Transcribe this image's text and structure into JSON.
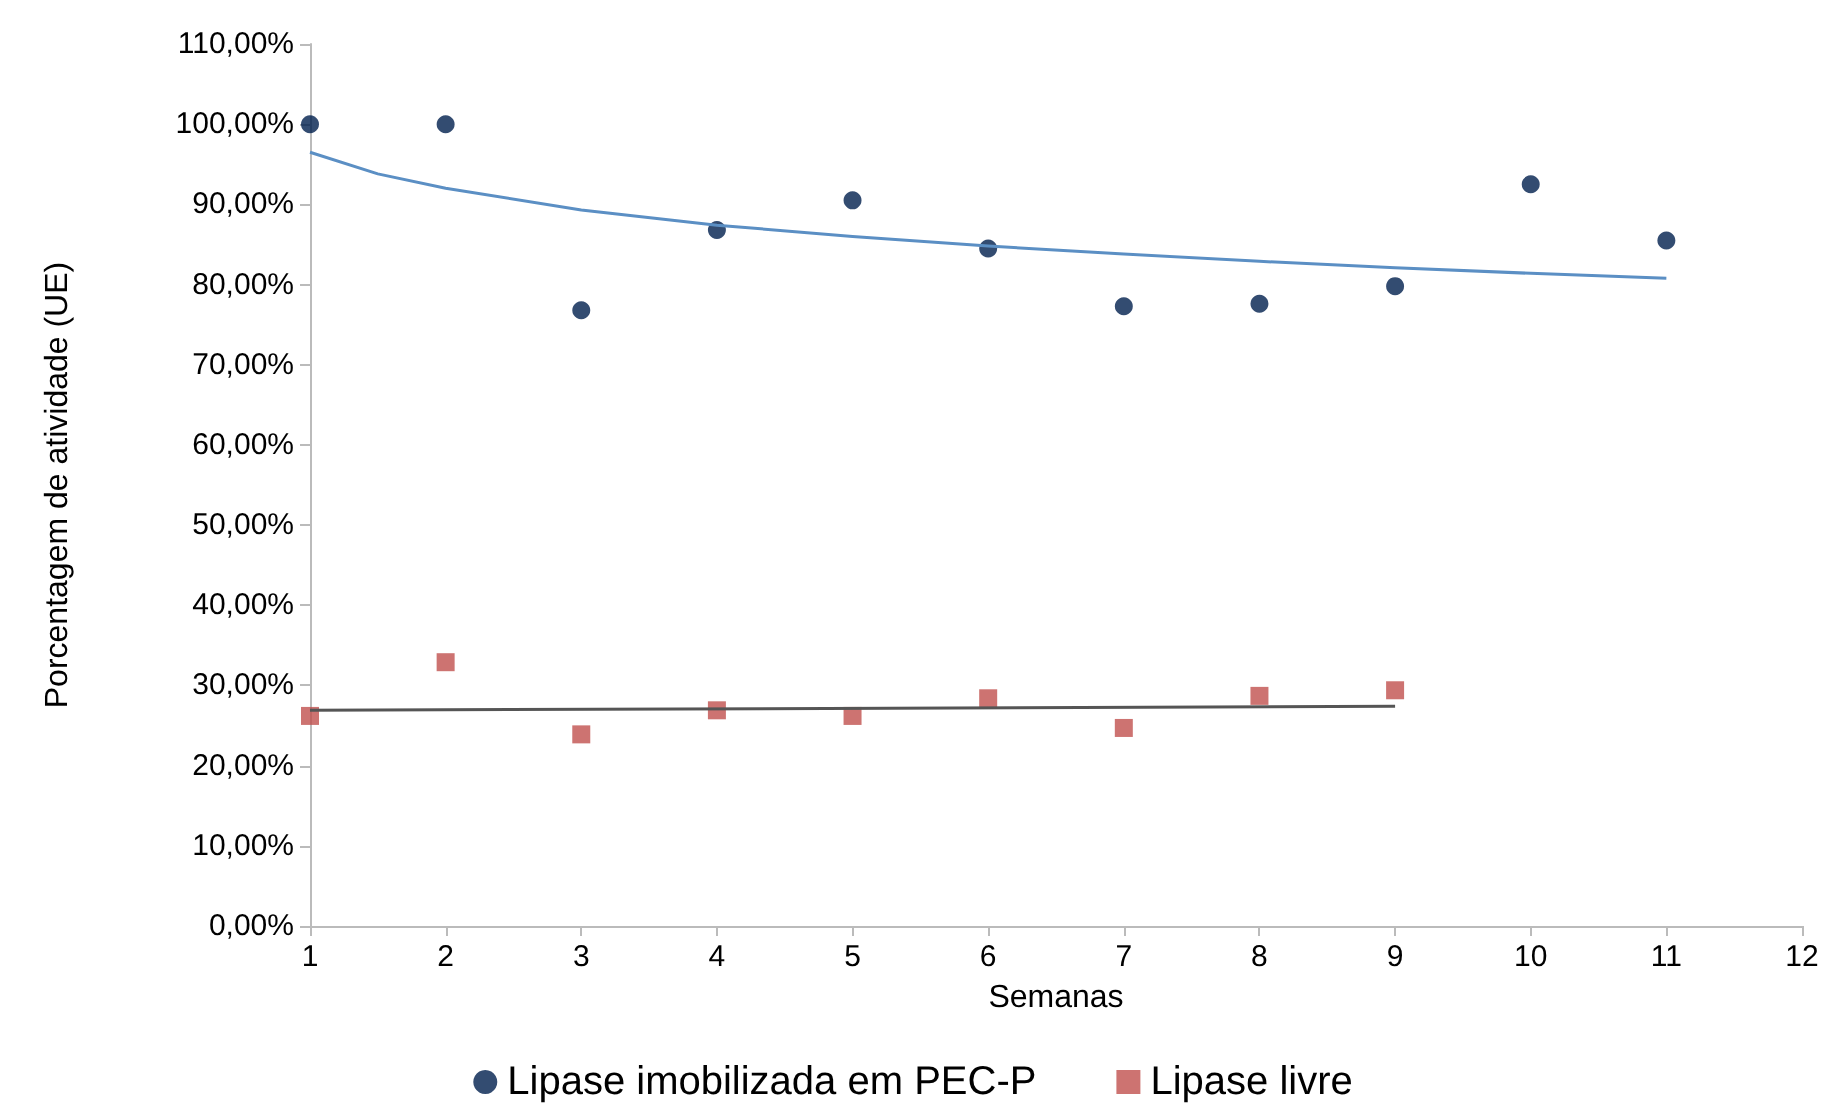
{
  "chart_data": {
    "type": "scatter",
    "xlabel": "Semanas",
    "ylabel": "Porcentagem de atividade (UE)",
    "xlim": [
      1,
      12
    ],
    "xticks": [
      1,
      2,
      3,
      4,
      5,
      6,
      7,
      8,
      9,
      10,
      11,
      12
    ],
    "ylim": [
      0,
      110
    ],
    "yticks": [
      {
        "value": 0,
        "label": "0,00%"
      },
      {
        "value": 10,
        "label": "10,00%"
      },
      {
        "value": 20,
        "label": "20,00%"
      },
      {
        "value": 30,
        "label": "30,00%"
      },
      {
        "value": 40,
        "label": "40,00%"
      },
      {
        "value": 50,
        "label": "50,00%"
      },
      {
        "value": 60,
        "label": "60,00%"
      },
      {
        "value": 70,
        "label": "70,00%"
      },
      {
        "value": 80,
        "label": "80,00%"
      },
      {
        "value": 90,
        "label": "90,00%"
      },
      {
        "value": 100,
        "label": "100,00%"
      },
      {
        "value": 110,
        "label": "110,00%"
      }
    ],
    "grid": false,
    "legend": "bottom",
    "series": [
      {
        "name": "Lipase imobilizada em PEC-P",
        "color": "#001f4d",
        "marker": "circle",
        "x": [
          1,
          2,
          3,
          4,
          5,
          6,
          7,
          8,
          9,
          10,
          11
        ],
        "values": [
          100,
          100,
          76.8,
          86.8,
          90.5,
          84.5,
          77.3,
          77.6,
          79.8,
          92.5,
          85.5
        ]
      },
      {
        "name": "Lipase livre",
        "color": "#c0504d",
        "marker": "square",
        "x": [
          1,
          2,
          3,
          4,
          5,
          6,
          7,
          8,
          9
        ],
        "values": [
          26.2,
          32.9,
          23.9,
          26.9,
          26.2,
          28.4,
          24.7,
          28.7,
          29.4
        ]
      },
      {
        "type": "line",
        "color": "#5b8fc4",
        "x": [
          1,
          1.5,
          2,
          3,
          4,
          5,
          6,
          7,
          8,
          9,
          10,
          11
        ],
        "values": [
          96.5,
          93.8,
          92.0,
          89.3,
          87.4,
          86.0,
          84.8,
          83.8,
          82.9,
          82.1,
          81.4,
          80.8
        ]
      },
      {
        "type": "line",
        "color": "#555555",
        "x": [
          1,
          9
        ],
        "values": [
          26.9,
          27.4
        ]
      }
    ]
  }
}
